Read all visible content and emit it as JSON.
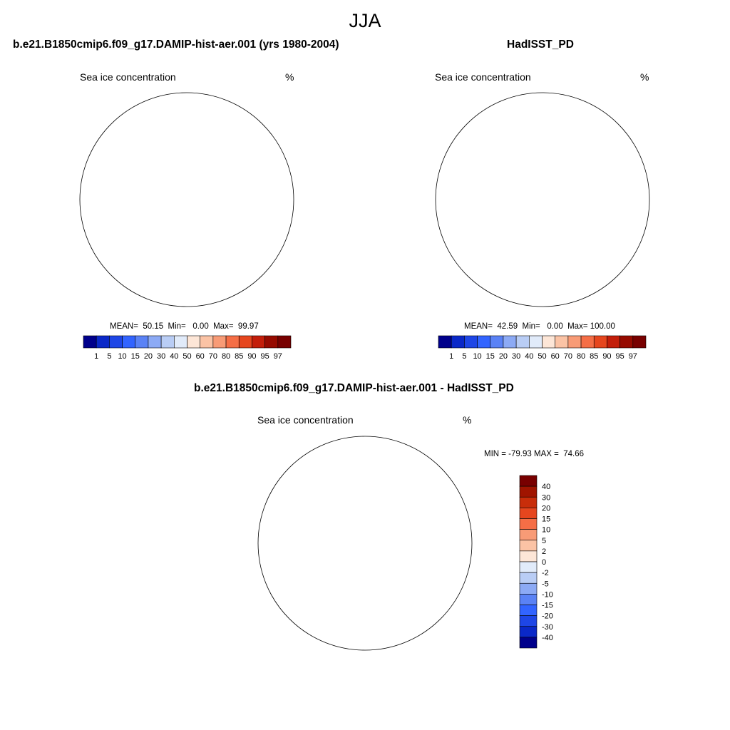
{
  "title": "JJA",
  "panels": {
    "model": {
      "title": "b.e21.B1850cmip6.f09_g17.DAMIP-hist-aer.001 (yrs 1980-2004)",
      "variable": "Sea ice concentration",
      "units": "%",
      "stats": "MEAN=  50.15  Min=   0.00  Max=  99.97"
    },
    "obs": {
      "title": "HadISST_PD",
      "variable": "Sea ice concentration",
      "units": "%",
      "stats": "MEAN=  42.59  Min=   0.00  Max= 100.00"
    },
    "diff": {
      "title": "b.e21.B1850cmip6.f09_g17.DAMIP-hist-aer.001 - HadISST_PD",
      "variable": "Sea ice concentration",
      "units": "%",
      "stats": "MIN = -79.93 MAX =  74.66"
    }
  },
  "colorbar_abs": {
    "labels": [
      "1",
      "5",
      "10",
      "15",
      "20",
      "30",
      "40",
      "50",
      "60",
      "70",
      "80",
      "85",
      "90",
      "95",
      "97"
    ],
    "colors": [
      "#00008b",
      "#0a28c8",
      "#1e46e6",
      "#3264ff",
      "#5a82f5",
      "#8caaf5",
      "#b9cdf5",
      "#e1ebfa",
      "#fde6d7",
      "#fbc3a5",
      "#f89b76",
      "#f56e46",
      "#e6461e",
      "#c31e0a",
      "#960a00",
      "#780000"
    ]
  },
  "colorbar_diff": {
    "labels": [
      "40",
      "30",
      "20",
      "15",
      "10",
      "5",
      "2",
      "0",
      "-2",
      "-5",
      "-10",
      "-15",
      "-20",
      "-30",
      "-40"
    ],
    "colors": [
      "#780000",
      "#a01400",
      "#c82d0a",
      "#e6461e",
      "#f56e46",
      "#f89b76",
      "#fbc3a5",
      "#fde6d7",
      "#e1ebfa",
      "#b9cdf5",
      "#8caaf5",
      "#5a82f5",
      "#3264ff",
      "#1e46e6",
      "#0a28c8",
      "#00008b"
    ]
  }
}
